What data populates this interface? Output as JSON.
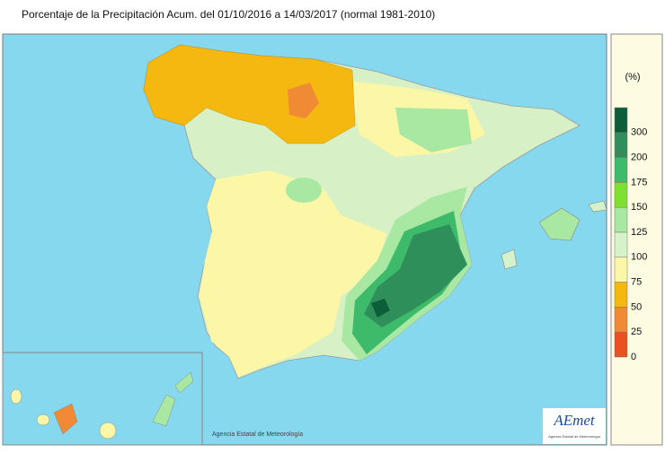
{
  "title": "Porcentaje de la Precipitación Acum. del 01/10/2016 a  14/03/2017  (normal 1981-2010)",
  "legend": {
    "unit": "(%)",
    "colors": [
      "#0b5e38",
      "#2f8f5a",
      "#3dbb6a",
      "#7ee030",
      "#a9e8a2",
      "#d6f2cb",
      "#fbf7a6",
      "#f4b810",
      "#f08a34",
      "#ea5020"
    ],
    "ticks": [
      300,
      200,
      175,
      150,
      125,
      100,
      75,
      50,
      25,
      0
    ]
  },
  "credit": "Agencia Estatal de Meteorología",
  "logo": "AEmet",
  "logo_caption": "Agencia Estatal de Meteorología"
}
